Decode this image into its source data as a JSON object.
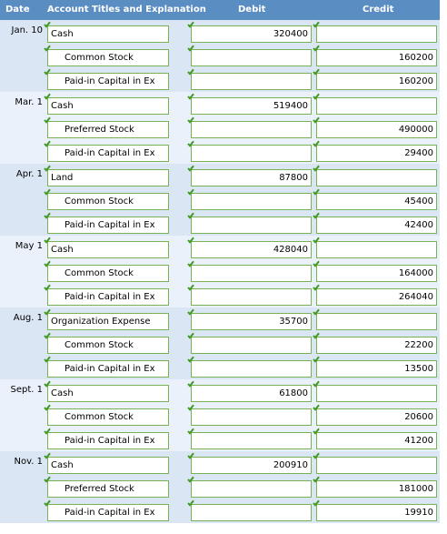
{
  "header": {
    "date": "Date",
    "account": "Account Titles and Explanation",
    "debit": "Debit",
    "credit": "Credit"
  },
  "entries": [
    {
      "date": "Jan. 10",
      "lines": [
        {
          "account": "Cash",
          "debit": "320400",
          "credit": ""
        },
        {
          "account": "Common Stock",
          "debit": "",
          "credit": "160200"
        },
        {
          "account": "Paid-in Capital in Ex",
          "debit": "",
          "credit": "160200"
        }
      ]
    },
    {
      "date": "Mar. 1",
      "lines": [
        {
          "account": "Cash",
          "debit": "519400",
          "credit": ""
        },
        {
          "account": "Preferred Stock",
          "debit": "",
          "credit": "490000"
        },
        {
          "account": "Paid-in Capital in Ex",
          "debit": "",
          "credit": "29400"
        }
      ]
    },
    {
      "date": "Apr. 1",
      "lines": [
        {
          "account": "Land",
          "debit": "87800",
          "credit": ""
        },
        {
          "account": "Common Stock",
          "debit": "",
          "credit": "45400"
        },
        {
          "account": "Paid-in Capital in Ex",
          "debit": "",
          "credit": "42400"
        }
      ]
    },
    {
      "date": "May 1",
      "lines": [
        {
          "account": "Cash",
          "debit": "428040",
          "credit": ""
        },
        {
          "account": "Common Stock",
          "debit": "",
          "credit": "164000"
        },
        {
          "account": "Paid-in Capital in Ex",
          "debit": "",
          "credit": "264040"
        }
      ]
    },
    {
      "date": "Aug. 1",
      "lines": [
        {
          "account": "Organization Expense",
          "debit": "35700",
          "credit": ""
        },
        {
          "account": "Common Stock",
          "debit": "",
          "credit": "22200"
        },
        {
          "account": "Paid-in Capital in Ex",
          "debit": "",
          "credit": "13500"
        }
      ]
    },
    {
      "date": "Sept. 1",
      "lines": [
        {
          "account": "Cash",
          "debit": "61800",
          "credit": ""
        },
        {
          "account": "Common Stock",
          "debit": "",
          "credit": "20600"
        },
        {
          "account": "Paid-in Capital in Ex",
          "debit": "",
          "credit": "41200"
        }
      ]
    },
    {
      "date": "Nov. 1",
      "lines": [
        {
          "account": "Cash",
          "debit": "200910",
          "credit": ""
        },
        {
          "account": "Preferred Stock",
          "debit": "",
          "credit": "181000"
        },
        {
          "account": "Paid-in Capital in Ex",
          "debit": "",
          "credit": "19910"
        }
      ]
    }
  ],
  "colors": {
    "header_bg": "#5a8dc1",
    "row_odd": "#dbe6f4",
    "row_even": "#eaf1fb",
    "field_border": "#77b255",
    "check": "#3f9a1f"
  },
  "icons": {
    "field_status": "green-check-icon"
  }
}
